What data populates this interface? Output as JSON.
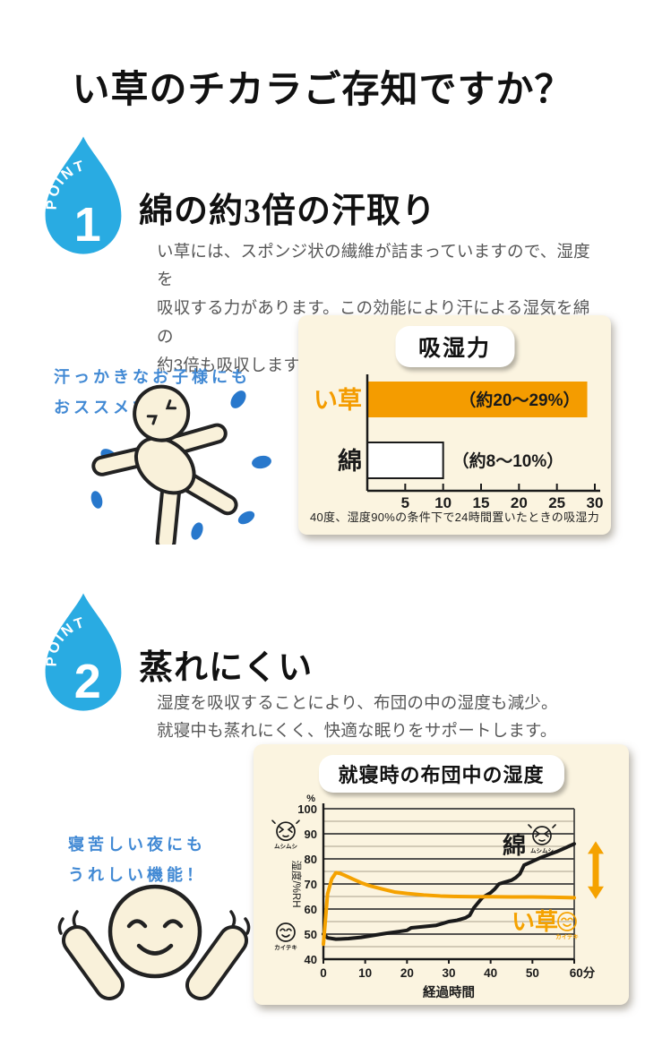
{
  "title": "い草のチカラご存知ですか？",
  "colors": {
    "accent_blue": "#29abe2",
    "note_blue": "#4189d4",
    "sweat_blue": "#2878cc",
    "orange": "#f49c00",
    "panel_cream": "#fbf4e0",
    "text_dark": "#1a1a1a",
    "text_gray": "#575757"
  },
  "point1": {
    "badge_label": "POINT",
    "badge_number": "1",
    "heading": "綿の約3倍の汗取り",
    "body": "い草には、スポンジ状の繊維が詰まっていますので、湿度を\n吸収する力があります。この効能により汗による湿気を綿の\n約3倍も吸収します。",
    "note": "汗っかきなお子様にも\nおススメです！"
  },
  "point2": {
    "badge_label": "POINT",
    "badge_number": "2",
    "heading": "蒸れにくい",
    "body": "湿度を吸収することにより、布団の中の湿度も減少。\n就寝中も蒸れにくく、快適な眠りをサポートします。",
    "note": "寝苦しい夜にも\nうれしい機能！"
  },
  "chart_data": [
    {
      "type": "bar",
      "orientation": "horizontal",
      "title": "吸湿力",
      "categories": [
        "い草",
        "綿"
      ],
      "values": [
        29,
        10
      ],
      "bar_labels": [
        "（約20～29%）",
        "（約8～10%）"
      ],
      "bar_colors": [
        "#f49c00",
        "#ffffff"
      ],
      "category_colors": [
        "#f49c00",
        "#1a1a1a"
      ],
      "xlim": [
        0,
        30
      ],
      "xticks": [
        5,
        10,
        15,
        20,
        25,
        30
      ],
      "xtick_unit": "%",
      "caption": "40度、湿度90%の条件下で24時間置いたときの吸湿力"
    },
    {
      "type": "line",
      "title": "就寝時の布団中の湿度",
      "xlabel": "経過時間",
      "ylabel": "湿度/%RH",
      "y_unit": "%",
      "xlim": [
        0,
        60
      ],
      "ylim": [
        40,
        100
      ],
      "xtick_labels": [
        "0",
        "10",
        "20",
        "30",
        "40",
        "50",
        "60分"
      ],
      "xtick_values": [
        0,
        10,
        20,
        30,
        40,
        50,
        60
      ],
      "yticks": [
        40,
        50,
        60,
        70,
        80,
        90,
        100
      ],
      "grid": "horizontal, minor every 5, major every 10",
      "annotations": {
        "humid_label": "ムシムシ",
        "comfy_label": "カイテキ",
        "arrow": "orange double arrow at right, from 64%RH to 87%RH"
      },
      "series": [
        {
          "name": "綿",
          "color": "#1a1a1a",
          "x": [
            0,
            1,
            3,
            6,
            9,
            12,
            15,
            18,
            20,
            21,
            24,
            27,
            29,
            30,
            32,
            33,
            34,
            35,
            36,
            37,
            38,
            39,
            40,
            41,
            42,
            43,
            44,
            45,
            46,
            47,
            48,
            50,
            52,
            54,
            56,
            58,
            60
          ],
          "y": [
            50,
            48.5,
            48,
            48.2,
            48.7,
            49.5,
            50.3,
            51,
            51.5,
            52.5,
            53,
            53.5,
            54.5,
            55,
            55.5,
            56,
            56.5,
            57.5,
            60.5,
            62.5,
            64.5,
            65.5,
            66.5,
            68,
            70,
            70.5,
            71,
            71.5,
            72.5,
            74,
            77.5,
            79,
            80.5,
            81.8,
            83,
            84.5,
            86
          ]
        },
        {
          "name": "い草",
          "color": "#f5a200",
          "x": [
            0,
            0.3,
            1,
            2,
            3,
            4,
            5,
            7,
            9,
            11,
            14,
            17,
            20,
            24,
            28,
            32,
            36,
            40,
            45,
            50,
            55,
            60
          ],
          "y": [
            46,
            52,
            66,
            72,
            74.5,
            74.2,
            73.5,
            72,
            70.5,
            69.3,
            68,
            66.8,
            66.2,
            65.6,
            65.2,
            65,
            64.9,
            64.9,
            64.8,
            64.8,
            64.7,
            64.5
          ]
        }
      ]
    }
  ]
}
